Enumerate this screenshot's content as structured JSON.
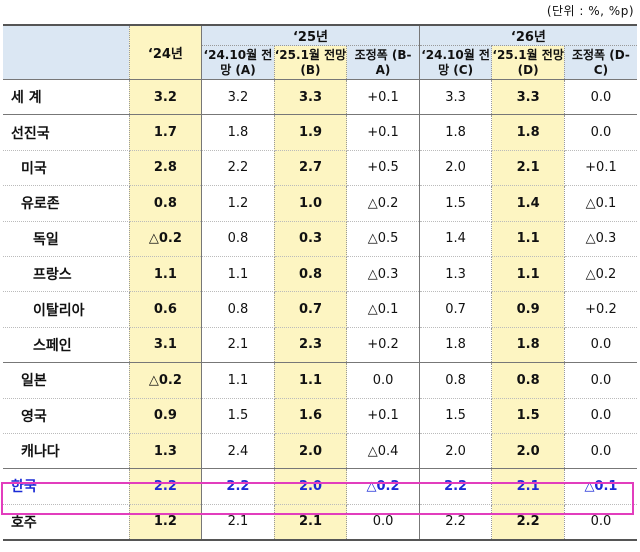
{
  "unit_note": "(단위 : %, %p)",
  "header": {
    "year24": "‘24년",
    "year25": "‘25년",
    "year26": "‘26년",
    "sub": [
      "‘24.10월 전망 (A)",
      "‘25.1월 전망 (B)",
      "조정폭 (B-A)",
      "‘24.10월 전망 (C)",
      "‘25.1월 전망 (D)",
      "조정폭 (D-C)"
    ]
  },
  "rows": [
    {
      "name": "세 계",
      "v": [
        "3.2",
        "3.2",
        "3.3",
        "+0.1",
        "3.3",
        "3.3",
        "0.0"
      ]
    },
    {
      "name": "선진국",
      "v": [
        "1.7",
        "1.8",
        "1.9",
        "+0.1",
        "1.8",
        "1.8",
        "0.0"
      ]
    },
    {
      "name": "미국",
      "v": [
        "2.8",
        "2.2",
        "2.7",
        "+0.5",
        "2.0",
        "2.1",
        "+0.1"
      ]
    },
    {
      "name": "유로존",
      "v": [
        "0.8",
        "1.2",
        "1.0",
        "△0.2",
        "1.5",
        "1.4",
        "△0.1"
      ]
    },
    {
      "name": "독일",
      "v": [
        "△0.2",
        "0.8",
        "0.3",
        "△0.5",
        "1.4",
        "1.1",
        "△0.3"
      ]
    },
    {
      "name": "프랑스",
      "v": [
        "1.1",
        "1.1",
        "0.8",
        "△0.3",
        "1.3",
        "1.1",
        "△0.2"
      ]
    },
    {
      "name": "이탈리아",
      "v": [
        "0.6",
        "0.8",
        "0.7",
        "△0.1",
        "0.7",
        "0.9",
        "+0.2"
      ]
    },
    {
      "name": "스페인",
      "v": [
        "3.1",
        "2.1",
        "2.3",
        "+0.2",
        "1.8",
        "1.8",
        "0.0"
      ]
    },
    {
      "name": "일본",
      "v": [
        "△0.2",
        "1.1",
        "1.1",
        "0.0",
        "0.8",
        "0.8",
        "0.0"
      ]
    },
    {
      "name": "영국",
      "v": [
        "0.9",
        "1.5",
        "1.6",
        "+0.1",
        "1.5",
        "1.5",
        "0.0"
      ]
    },
    {
      "name": "캐나다",
      "v": [
        "1.3",
        "2.4",
        "2.0",
        "△0.4",
        "2.0",
        "2.0",
        "0.0"
      ]
    },
    {
      "name": "한국",
      "v": [
        "2.2",
        "2.2",
        "2.0",
        "△0.2",
        "2.2",
        "2.1",
        "△0.1"
      ]
    },
    {
      "name": "호주",
      "v": [
        "1.2",
        "2.1",
        "2.1",
        "0.0",
        "2.2",
        "2.2",
        "0.0"
      ]
    }
  ],
  "colors": {
    "header_bg": "#dbe7f3",
    "highlight_bg": "#fdf5c2",
    "korea_text": "#1b2bd6",
    "korea_box": "#e23dbd"
  }
}
